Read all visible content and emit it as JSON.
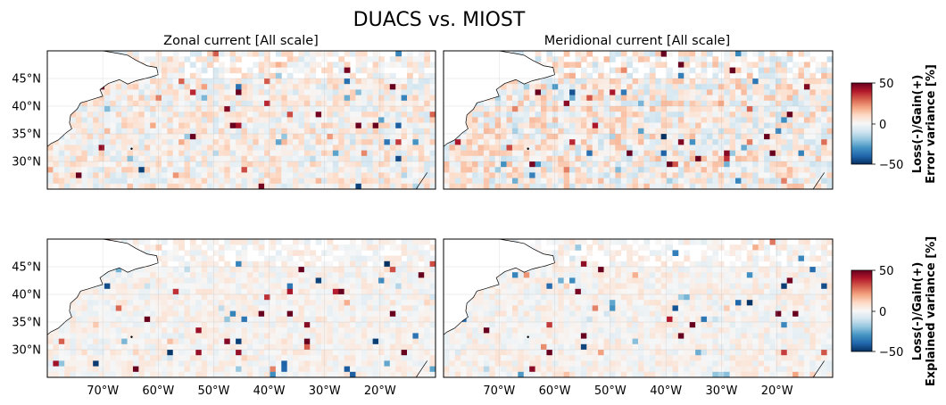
{
  "title": "DUACS vs. MIOST",
  "panel_titles": [
    "Zonal current [All scale]",
    "Meridional current [All scale]"
  ],
  "colorbar": {
    "ticks": [
      "50",
      "0",
      "−50"
    ],
    "tick_values": [
      50,
      0,
      -50
    ],
    "vmin": -50,
    "vmax": 50,
    "colormap": "RdBu_r",
    "labels": [
      {
        "line1": "Loss(-)/Gain(+)",
        "line2": "Error variance [%]"
      },
      {
        "line1": "Loss(-)/Gain(+)",
        "line2": "Explained variance [%]"
      }
    ]
  },
  "chart_data": [
    {
      "type": "heatmap",
      "title": "Zonal current [All scale]",
      "metric": "Error variance [%]",
      "xlim": [
        -80,
        -10
      ],
      "ylim": [
        25,
        50
      ],
      "ytick_labels": [
        "45°N",
        "40°N",
        "35°N",
        "30°N"
      ],
      "ytick_values": [
        45,
        40,
        35,
        30
      ],
      "xtick_labels": [],
      "grid": true,
      "noise_amplitude": 22,
      "seed": 11
    },
    {
      "type": "heatmap",
      "title": "Meridional current [All scale]",
      "metric": "Error variance [%]",
      "xlim": [
        -80,
        -10
      ],
      "ylim": [
        25,
        50
      ],
      "ytick_labels": [],
      "xtick_labels": [],
      "grid": true,
      "noise_amplitude": 28,
      "seed": 23
    },
    {
      "type": "heatmap",
      "title": "",
      "metric": "Explained variance [%]",
      "xlim": [
        -80,
        -10
      ],
      "ylim": [
        25,
        50
      ],
      "ytick_labels": [
        "45°N",
        "40°N",
        "35°N",
        "30°N"
      ],
      "ytick_values": [
        45,
        40,
        35,
        30
      ],
      "xtick_labels": [
        "70°W",
        "60°W",
        "50°W",
        "40°W",
        "30°W",
        "20°W"
      ],
      "xtick_values": [
        -70,
        -60,
        -50,
        -40,
        -30,
        -20
      ],
      "grid": true,
      "noise_amplitude": 12,
      "seed": 37
    },
    {
      "type": "heatmap",
      "title": "",
      "metric": "Explained variance [%]",
      "xlim": [
        -80,
        -10
      ],
      "ylim": [
        25,
        50
      ],
      "ytick_labels": [],
      "xtick_labels": [
        "70°W",
        "60°W",
        "50°W",
        "40°W",
        "30°W",
        "20°W"
      ],
      "xtick_values": [
        -70,
        -60,
        -50,
        -40,
        -30,
        -20
      ],
      "grid": true,
      "noise_amplitude": 13,
      "seed": 53
    }
  ]
}
